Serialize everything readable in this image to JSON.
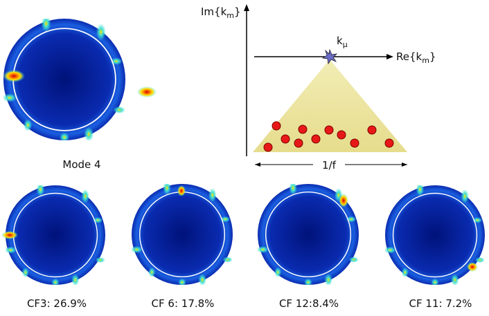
{
  "mode_caption": "Mode 4",
  "im_axis": {
    "base": "Im{k",
    "sub": "m",
    "close": "}"
  },
  "re_axis": {
    "base": "Re{k",
    "sub": "m",
    "close": "}"
  },
  "k_mu": {
    "base": "k",
    "sub": "μ"
  },
  "freq_label": "1/f",
  "captions": [
    "CF3:  26.9%",
    "CF 6:  17.8%",
    "CF 12:8.4%",
    "CF 11: 7.2%"
  ]
}
